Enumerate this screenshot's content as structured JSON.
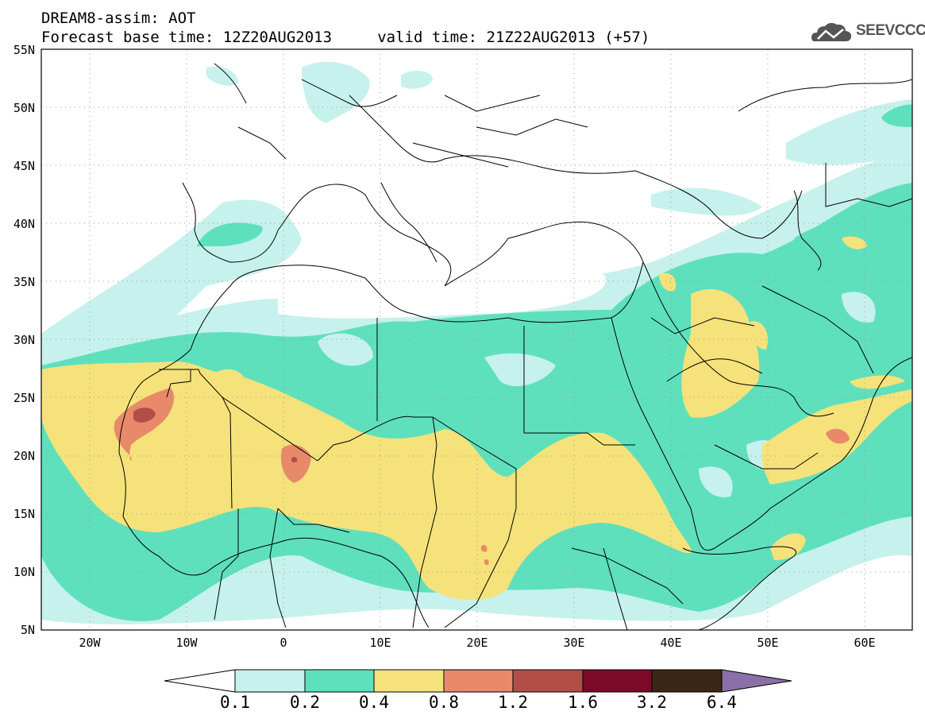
{
  "header": {
    "title_line1": "DREAM8-assim: AOT",
    "title_line2": "Forecast base time: 12Z20AUG2013     valid time: 21Z22AUG2013 (+57)"
  },
  "logo": {
    "text": "SEEVCCC",
    "icon": "cloud-icon"
  },
  "map": {
    "lon_range": [
      -25,
      65
    ],
    "lat_range": [
      5,
      55
    ],
    "grid": "dotted",
    "lat_labels": [
      "5N",
      "10N",
      "15N",
      "20N",
      "25N",
      "30N",
      "35N",
      "40N",
      "45N",
      "50N",
      "55N"
    ],
    "lon_labels": [
      "20W",
      "10W",
      "0",
      "10E",
      "20E",
      "30E",
      "40E",
      "50E",
      "60E"
    ],
    "colors": {
      "level_0_1": "#c7f1ec",
      "level_0_2": "#5ee0bd",
      "level_0_4": "#f5e27a",
      "level_0_8": "#e8896a",
      "level_1_2": "#b14e48",
      "level_1_6": "#7b0a28",
      "level_3_2": "#3c2615",
      "level_6_4": "#8b6fa8"
    }
  },
  "colorbar": {
    "labels": [
      "0.1",
      "0.2",
      "0.4",
      "0.8",
      "1.2",
      "1.6",
      "3.2",
      "6.4"
    ],
    "colors": [
      "#c7f1ec",
      "#5ee0bd",
      "#f5e27a",
      "#e8896a",
      "#b14e48",
      "#7b0a28",
      "#3c2615"
    ],
    "over_color": "#8b6fa8",
    "under_color": "#ffffff"
  }
}
